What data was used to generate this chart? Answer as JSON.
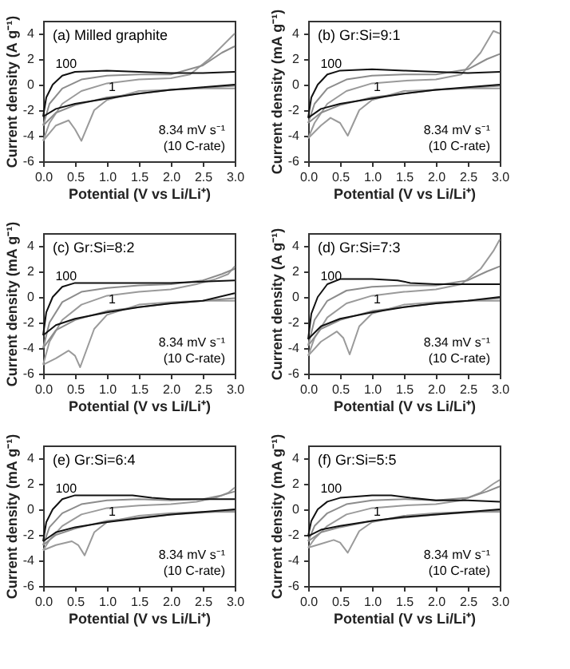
{
  "chart_data": [
    {
      "type": "line",
      "title": "(a) Milled graphite",
      "xlabel": "Potential (V vs Li/Li⁺)",
      "ylabel": "Current density (A g⁻¹)",
      "xlim": [
        0,
        3
      ],
      "ylim": [
        -6,
        5
      ],
      "xticks": [
        {
          "value": 0,
          "label": "0.0"
        },
        {
          "value": 0.5,
          "label": "0.5"
        },
        {
          "value": 1,
          "label": "1.0"
        },
        {
          "value": 1.5,
          "label": "1.5"
        },
        {
          "value": 2,
          "label": "2.0"
        },
        {
          "value": 2.5,
          "label": "2.5"
        },
        {
          "value": 3,
          "label": "3.0"
        }
      ],
      "yticks": [
        -6,
        -4,
        -2,
        0,
        2,
        4
      ],
      "grid": false,
      "legend": false,
      "marker": "none",
      "line_style": "solid",
      "series": [
        {
          "color": "#9a9a9a",
          "x": [
            0.0,
            0.2,
            0.4,
            0.5,
            0.6,
            0.8,
            1.0,
            1.5,
            2.0,
            2.5,
            3.0
          ],
          "values": [
            -4.4,
            -3.2,
            -2.8,
            -3.5,
            -4.4,
            -2.0,
            -1.2,
            -0.5,
            -0.4,
            -0.3,
            -0.3
          ]
        },
        {
          "color": "#9a9a9a",
          "x": [
            0.0,
            0.1,
            0.3,
            0.6,
            1.0,
            1.5,
            2.0,
            2.3,
            2.6,
            2.8,
            3.0
          ],
          "values": [
            -4.4,
            -3.0,
            -1.5,
            -0.5,
            0.1,
            0.4,
            0.5,
            0.8,
            2.0,
            3.0,
            4.0
          ]
        },
        {
          "color": "#8c8c8c",
          "x": [
            0.0,
            0.2,
            0.5,
            1.0,
            2.0,
            3.0
          ],
          "values": [
            -3.2,
            -2.2,
            -1.6,
            -1.0,
            -0.4,
            -0.1
          ]
        },
        {
          "color": "#8c8c8c",
          "x": [
            0.0,
            0.1,
            0.3,
            0.6,
            1.0,
            1.5,
            2.0,
            2.5,
            2.8,
            3.0
          ],
          "values": [
            -3.2,
            -1.5,
            -0.3,
            0.4,
            0.7,
            0.8,
            0.8,
            1.5,
            2.5,
            3.0
          ]
        },
        {
          "color": "#111111",
          "x": [
            0.0,
            0.2,
            0.5,
            1.0,
            1.5,
            2.0,
            2.5,
            3.0
          ],
          "values": [
            -2.5,
            -1.9,
            -1.5,
            -1.1,
            -0.7,
            -0.4,
            -0.2,
            0.0
          ]
        },
        {
          "color": "#111111",
          "x": [
            0.0,
            0.05,
            0.15,
            0.3,
            0.5,
            1.0,
            1.5,
            2.0,
            2.5,
            3.0
          ],
          "values": [
            -2.5,
            -1.0,
            0.0,
            0.7,
            1.0,
            1.1,
            1.0,
            0.9,
            0.9,
            1.0
          ]
        }
      ],
      "annotations": [
        "100",
        "1",
        "8.34 mV s⁻¹",
        "(10 C-rate)"
      ]
    },
    {
      "type": "line",
      "title": "(b) Gr:Si=9:1",
      "xlabel": "Potential (V vs Li/Li⁺)",
      "ylabel": "Current density (mA g⁻¹)",
      "xlim": [
        0,
        3
      ],
      "ylim": [
        -6,
        5
      ],
      "xticks": [
        {
          "value": 0,
          "label": "0.0"
        },
        {
          "value": 0.5,
          "label": "0.5"
        },
        {
          "value": 1,
          "label": "1.0"
        },
        {
          "value": 1.5,
          "label": "1.5"
        },
        {
          "value": 2,
          "label": "2.0"
        },
        {
          "value": 2.5,
          "label": "2.5"
        },
        {
          "value": 3,
          "label": "3.0"
        }
      ],
      "yticks": [
        -6,
        -4,
        -2,
        0,
        2,
        4
      ],
      "grid": false,
      "legend": false,
      "marker": "none",
      "line_style": "solid",
      "series": [
        {
          "color": "#9a9a9a",
          "x": [
            0.0,
            0.2,
            0.35,
            0.5,
            0.62,
            0.8,
            1.0,
            1.5,
            2.0,
            2.5,
            3.0
          ],
          "values": [
            -4.2,
            -3.2,
            -2.6,
            -3.0,
            -4.0,
            -2.0,
            -1.2,
            -0.5,
            -0.4,
            -0.3,
            -0.3
          ]
        },
        {
          "color": "#9a9a9a",
          "x": [
            0.0,
            0.1,
            0.3,
            0.6,
            1.0,
            1.5,
            2.0,
            2.4,
            2.7,
            2.9,
            3.0
          ],
          "values": [
            -4.2,
            -3.0,
            -1.5,
            -0.5,
            0.1,
            0.3,
            0.4,
            0.8,
            2.5,
            4.2,
            4.0
          ]
        },
        {
          "color": "#8c8c8c",
          "x": [
            0.0,
            0.2,
            0.5,
            1.0,
            2.0,
            3.0
          ],
          "values": [
            -3.0,
            -2.2,
            -1.6,
            -1.0,
            -0.4,
            -0.1
          ]
        },
        {
          "color": "#8c8c8c",
          "x": [
            0.0,
            0.1,
            0.3,
            0.6,
            1.0,
            1.5,
            2.0,
            2.5,
            2.8,
            3.0
          ],
          "values": [
            -3.0,
            -1.5,
            -0.3,
            0.4,
            0.7,
            0.8,
            0.8,
            1.2,
            2.0,
            2.4
          ]
        },
        {
          "color": "#111111",
          "x": [
            0.0,
            0.2,
            0.5,
            1.0,
            1.5,
            2.0,
            2.5,
            3.0
          ],
          "values": [
            -2.6,
            -1.9,
            -1.5,
            -1.1,
            -0.7,
            -0.4,
            -0.2,
            0.0
          ]
        },
        {
          "color": "#111111",
          "x": [
            0.0,
            0.05,
            0.15,
            0.3,
            0.5,
            1.0,
            1.5,
            2.0,
            2.5,
            3.0
          ],
          "values": [
            -2.6,
            -1.0,
            0.0,
            0.8,
            1.1,
            1.2,
            1.1,
            1.0,
            0.9,
            1.0
          ]
        }
      ],
      "annotations": [
        "100",
        "1",
        "8.34 mV s⁻¹",
        "(10 C-rate)"
      ]
    },
    {
      "type": "line",
      "title": "(c) Gr:Si=8:2",
      "xlabel": "Potential (V vs Li/Li⁺)",
      "ylabel": "Current density (mA g⁻¹)",
      "xlim": [
        0,
        3
      ],
      "ylim": [
        -6,
        5
      ],
      "xticks": [
        {
          "value": 0,
          "label": "0.0"
        },
        {
          "value": 0.5,
          "label": "0.5"
        },
        {
          "value": 1,
          "label": "1.0"
        },
        {
          "value": 1.5,
          "label": "1.5"
        },
        {
          "value": 2,
          "label": "2.0"
        },
        {
          "value": 2.5,
          "label": "2.5"
        },
        {
          "value": 3,
          "label": "3.0"
        }
      ],
      "yticks": [
        -6,
        -4,
        -2,
        0,
        2,
        4
      ],
      "grid": false,
      "legend": false,
      "marker": "none",
      "line_style": "solid",
      "series": [
        {
          "color": "#9a9a9a",
          "x": [
            0.0,
            0.2,
            0.4,
            0.5,
            0.58,
            0.8,
            1.0,
            1.5,
            2.0,
            2.5,
            3.0
          ],
          "values": [
            -5.3,
            -4.8,
            -4.2,
            -4.6,
            -5.5,
            -2.5,
            -1.4,
            -0.6,
            -0.4,
            -0.3,
            -0.3
          ]
        },
        {
          "color": "#9a9a9a",
          "x": [
            0.0,
            0.1,
            0.3,
            0.6,
            1.0,
            1.5,
            2.0,
            2.4,
            2.7,
            2.9,
            3.0
          ],
          "values": [
            -5.3,
            -3.5,
            -1.8,
            -0.6,
            0.1,
            0.4,
            0.6,
            1.0,
            1.4,
            1.8,
            2.4
          ]
        },
        {
          "color": "#8c8c8c",
          "x": [
            0.0,
            0.2,
            0.5,
            1.0,
            2.0,
            3.0
          ],
          "values": [
            -4.0,
            -2.6,
            -1.8,
            -1.1,
            -0.5,
            -0.1
          ]
        },
        {
          "color": "#8c8c8c",
          "x": [
            0.0,
            0.1,
            0.3,
            0.6,
            1.0,
            1.5,
            2.0,
            2.5,
            2.8,
            3.0
          ],
          "values": [
            -4.0,
            -2.0,
            -0.4,
            0.4,
            0.7,
            0.9,
            1.0,
            1.3,
            1.8,
            2.2
          ]
        },
        {
          "color": "#111111",
          "x": [
            0.0,
            0.2,
            0.5,
            1.0,
            1.5,
            2.0,
            2.5,
            3.0
          ],
          "values": [
            -3.0,
            -2.2,
            -1.7,
            -1.2,
            -0.8,
            -0.5,
            -0.3,
            0.3
          ]
        },
        {
          "color": "#111111",
          "x": [
            0.0,
            0.05,
            0.15,
            0.3,
            0.5,
            1.0,
            1.5,
            2.0,
            2.5,
            3.0
          ],
          "values": [
            -3.0,
            -1.2,
            0.0,
            0.8,
            1.1,
            1.1,
            1.1,
            1.1,
            1.2,
            1.3
          ]
        }
      ],
      "annotations": [
        "100",
        "1",
        "8.34 mV s⁻¹",
        "(10 C-rate)"
      ]
    },
    {
      "type": "line",
      "title": "(d) Gr:Si=7:3",
      "xlabel": "Potential (V vs Li/Li⁺)",
      "ylabel": "Current density (A g⁻¹)",
      "xlim": [
        0,
        3
      ],
      "ylim": [
        -6,
        5
      ],
      "xticks": [
        {
          "value": 0,
          "label": "0.0"
        },
        {
          "value": 0.5,
          "label": "0.5"
        },
        {
          "value": 1,
          "label": "1.0"
        },
        {
          "value": 1.5,
          "label": "1.5"
        },
        {
          "value": 2,
          "label": "2.0"
        },
        {
          "value": 2.5,
          "label": "2.5"
        },
        {
          "value": 3,
          "label": "3.0"
        }
      ],
      "yticks": [
        -6,
        -4,
        -2,
        0,
        2,
        4
      ],
      "grid": false,
      "legend": false,
      "marker": "none",
      "line_style": "solid",
      "series": [
        {
          "color": "#9a9a9a",
          "x": [
            0.0,
            0.2,
            0.45,
            0.55,
            0.65,
            0.8,
            1.0,
            1.5,
            2.0,
            2.5,
            3.0
          ],
          "values": [
            -4.6,
            -3.5,
            -2.7,
            -3.2,
            -4.5,
            -2.3,
            -1.3,
            -0.6,
            -0.4,
            -0.3,
            -0.3
          ]
        },
        {
          "color": "#9a9a9a",
          "x": [
            0.0,
            0.1,
            0.3,
            0.6,
            1.0,
            1.5,
            2.0,
            2.4,
            2.7,
            2.9,
            3.0
          ],
          "values": [
            -4.6,
            -3.2,
            -1.6,
            -0.5,
            0.1,
            0.4,
            0.6,
            1.0,
            2.2,
            3.6,
            4.5
          ]
        },
        {
          "color": "#8c8c8c",
          "x": [
            0.0,
            0.2,
            0.5,
            1.0,
            2.0,
            3.0
          ],
          "values": [
            -3.8,
            -2.5,
            -1.8,
            -1.1,
            -0.5,
            -0.1
          ]
        },
        {
          "color": "#8c8c8c",
          "x": [
            0.0,
            0.1,
            0.3,
            0.6,
            1.0,
            1.5,
            2.0,
            2.5,
            2.8,
            3.0
          ],
          "values": [
            -3.8,
            -1.8,
            -0.3,
            0.5,
            0.8,
            0.9,
            0.9,
            1.3,
            2.0,
            2.4
          ]
        },
        {
          "color": "#111111",
          "x": [
            0.0,
            0.2,
            0.5,
            1.0,
            1.5,
            2.0,
            2.5,
            3.0
          ],
          "values": [
            -3.3,
            -2.3,
            -1.7,
            -1.2,
            -0.8,
            -0.5,
            -0.3,
            0.0
          ]
        },
        {
          "color": "#111111",
          "x": [
            0.0,
            0.05,
            0.15,
            0.3,
            0.5,
            1.0,
            1.4,
            1.6,
            2.0,
            2.5,
            3.0
          ],
          "values": [
            -3.3,
            -1.3,
            0.0,
            1.0,
            1.4,
            1.4,
            1.3,
            1.1,
            1.0,
            1.0,
            1.0
          ]
        }
      ],
      "annotations": [
        "100",
        "1",
        "8.34 mV s⁻¹",
        "(10 C-rate)"
      ]
    },
    {
      "type": "line",
      "title": "(e) Gr:Si=6:4",
      "xlabel": "Potential (V vs Li/Li⁺)",
      "ylabel": "Current density (mA g⁻¹)",
      "xlim": [
        0,
        3
      ],
      "ylim": [
        -6,
        5
      ],
      "xticks": [
        {
          "value": 0,
          "label": "0.0"
        },
        {
          "value": 0.5,
          "label": "0.5"
        },
        {
          "value": 1,
          "label": "1.0"
        },
        {
          "value": 1.5,
          "label": "1.5"
        },
        {
          "value": 2,
          "label": "2.0"
        },
        {
          "value": 2.5,
          "label": "2.5"
        },
        {
          "value": 3,
          "label": "3.0"
        }
      ],
      "yticks": [
        -6,
        -4,
        -2,
        0,
        2,
        4
      ],
      "grid": false,
      "legend": false,
      "marker": "none",
      "line_style": "solid",
      "series": [
        {
          "color": "#9a9a9a",
          "x": [
            0.0,
            0.2,
            0.45,
            0.55,
            0.65,
            0.8,
            1.0,
            1.5,
            2.0,
            2.5,
            3.0
          ],
          "values": [
            -3.2,
            -2.8,
            -2.5,
            -2.8,
            -3.6,
            -1.8,
            -1.0,
            -0.5,
            -0.3,
            -0.2,
            -0.2
          ]
        },
        {
          "color": "#9a9a9a",
          "x": [
            0.0,
            0.1,
            0.3,
            0.6,
            1.0,
            1.5,
            2.0,
            2.4,
            2.7,
            2.9,
            3.0
          ],
          "values": [
            -3.2,
            -2.4,
            -1.3,
            -0.4,
            0.1,
            0.3,
            0.4,
            0.6,
            0.9,
            1.3,
            1.7
          ]
        },
        {
          "color": "#8c8c8c",
          "x": [
            0.0,
            0.2,
            0.5,
            1.0,
            2.0,
            3.0
          ],
          "values": [
            -2.8,
            -2.0,
            -1.5,
            -0.9,
            -0.4,
            -0.1
          ]
        },
        {
          "color": "#8c8c8c",
          "x": [
            0.0,
            0.1,
            0.3,
            0.6,
            1.0,
            1.5,
            2.0,
            2.5,
            2.8,
            3.0
          ],
          "values": [
            -2.8,
            -1.4,
            -0.3,
            0.4,
            0.7,
            0.8,
            0.7,
            0.8,
            1.1,
            1.4
          ]
        },
        {
          "color": "#111111",
          "x": [
            0.0,
            0.2,
            0.5,
            1.0,
            1.5,
            2.0,
            2.5,
            3.0
          ],
          "values": [
            -2.5,
            -1.8,
            -1.4,
            -1.0,
            -0.7,
            -0.4,
            -0.2,
            0.0
          ]
        },
        {
          "color": "#111111",
          "x": [
            0.0,
            0.05,
            0.15,
            0.3,
            0.5,
            1.0,
            1.4,
            1.7,
            2.0,
            2.5,
            3.0
          ],
          "values": [
            -2.5,
            -1.0,
            0.0,
            0.8,
            1.1,
            1.1,
            1.1,
            0.9,
            0.8,
            0.8,
            0.8
          ]
        }
      ],
      "annotations": [
        "100",
        "1",
        "8.34 mV s⁻¹",
        "(10 C-rate)"
      ]
    },
    {
      "type": "line",
      "title": "(f) Gr:Si=5:5",
      "xlabel": "Potential (V vs Li/Li⁺)",
      "ylabel": "Current density (mA g⁻¹)",
      "xlim": [
        0,
        3
      ],
      "ylim": [
        -6,
        5
      ],
      "xticks": [
        {
          "value": 0,
          "label": "0.0"
        },
        {
          "value": 0.5,
          "label": "0.5"
        },
        {
          "value": 1,
          "label": "1.0"
        },
        {
          "value": 1.5,
          "label": "1.5"
        },
        {
          "value": 2,
          "label": "2.0"
        },
        {
          "value": 2.5,
          "label": "2.5"
        },
        {
          "value": 3,
          "label": "3.0"
        }
      ],
      "yticks": [
        -6,
        -4,
        -2,
        0,
        2,
        4
      ],
      "grid": false,
      "legend": false,
      "marker": "none",
      "line_style": "solid",
      "series": [
        {
          "color": "#9a9a9a",
          "x": [
            0.0,
            0.2,
            0.4,
            0.5,
            0.62,
            0.8,
            1.0,
            1.5,
            2.0,
            2.5,
            3.0
          ],
          "values": [
            -3.0,
            -2.7,
            -2.4,
            -2.6,
            -3.4,
            -1.7,
            -1.0,
            -0.5,
            -0.3,
            -0.2,
            -0.2
          ]
        },
        {
          "color": "#9a9a9a",
          "x": [
            0.0,
            0.1,
            0.3,
            0.6,
            1.0,
            1.5,
            2.0,
            2.4,
            2.7,
            2.9,
            3.0
          ],
          "values": [
            -3.0,
            -2.3,
            -1.3,
            -0.4,
            0.1,
            0.3,
            0.4,
            0.7,
            1.3,
            2.0,
            2.3
          ]
        },
        {
          "color": "#8c8c8c",
          "x": [
            0.0,
            0.2,
            0.5,
            1.0,
            2.0,
            3.0
          ],
          "values": [
            -2.5,
            -1.8,
            -1.4,
            -0.9,
            -0.4,
            -0.1
          ]
        },
        {
          "color": "#8c8c8c",
          "x": [
            0.0,
            0.1,
            0.3,
            0.6,
            1.0,
            1.5,
            2.0,
            2.5,
            2.8,
            3.0
          ],
          "values": [
            -2.5,
            -1.3,
            -0.3,
            0.4,
            0.7,
            0.8,
            0.7,
            0.9,
            1.4,
            1.8
          ]
        },
        {
          "color": "#111111",
          "x": [
            0.0,
            0.2,
            0.5,
            1.0,
            1.5,
            2.0,
            2.5,
            3.0
          ],
          "values": [
            -2.1,
            -1.6,
            -1.3,
            -0.9,
            -0.6,
            -0.4,
            -0.2,
            0.0
          ]
        },
        {
          "color": "#111111",
          "x": [
            0.0,
            0.05,
            0.15,
            0.3,
            0.5,
            1.0,
            1.3,
            1.6,
            2.0,
            2.5,
            3.0
          ],
          "values": [
            -2.1,
            -0.9,
            0.0,
            0.6,
            0.9,
            1.1,
            1.1,
            0.9,
            0.7,
            0.7,
            0.6
          ]
        }
      ],
      "annotations": [
        "100",
        "1",
        "8.34 mV s⁻¹",
        "(10 C-rate)"
      ]
    }
  ]
}
